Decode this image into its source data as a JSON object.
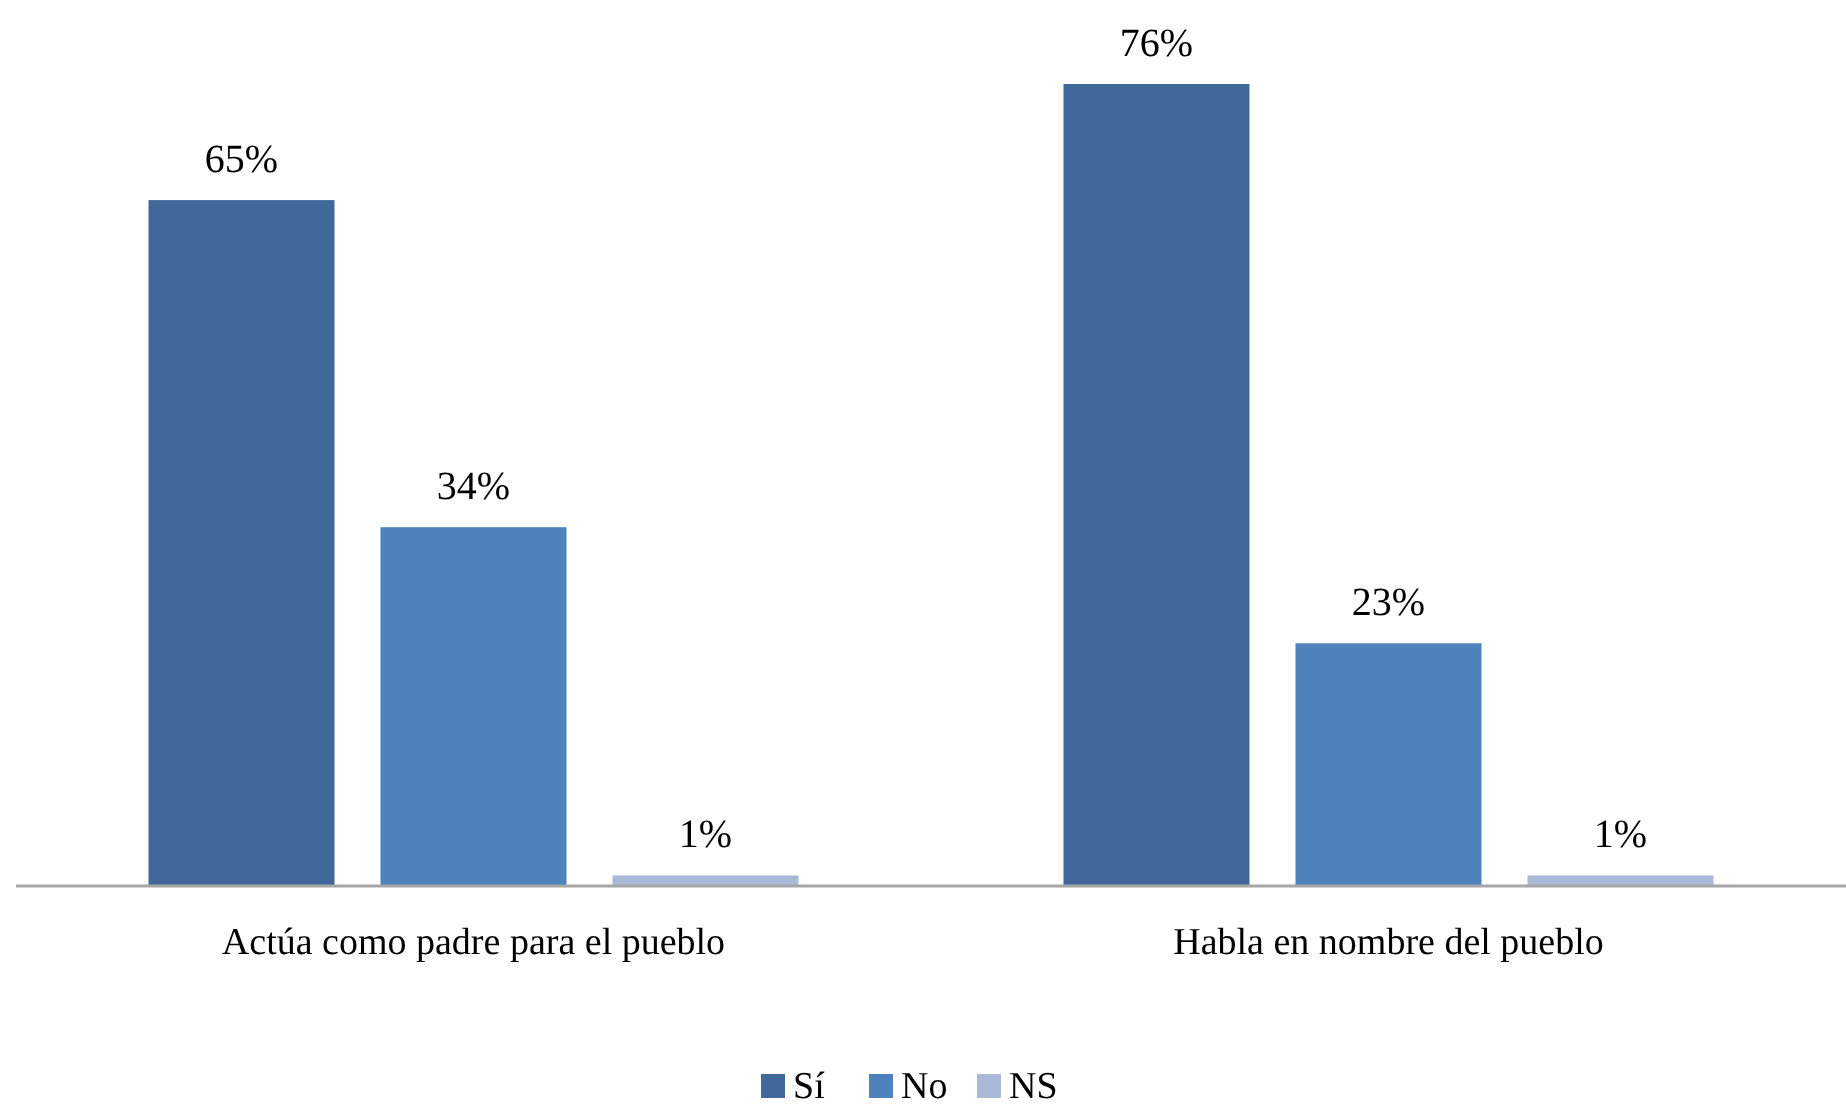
{
  "chart_data": {
    "type": "bar",
    "categories": [
      "Actúa como padre para el pueblo",
      "Habla en nombre del pueblo"
    ],
    "series": [
      {
        "name": "Sí",
        "color": "#41689a",
        "values": [
          65,
          76
        ],
        "value_labels": [
          "65%",
          "76%"
        ]
      },
      {
        "name": "No",
        "color": "#4f81bd",
        "values": [
          34,
          23
        ],
        "value_labels": [
          "34%",
          "23%"
        ]
      },
      {
        "name": "NS",
        "color": "#a9b9d7",
        "values": [
          1,
          1
        ],
        "value_labels": [
          "1%",
          "1%"
        ]
      }
    ],
    "legend": "bottom"
  }
}
